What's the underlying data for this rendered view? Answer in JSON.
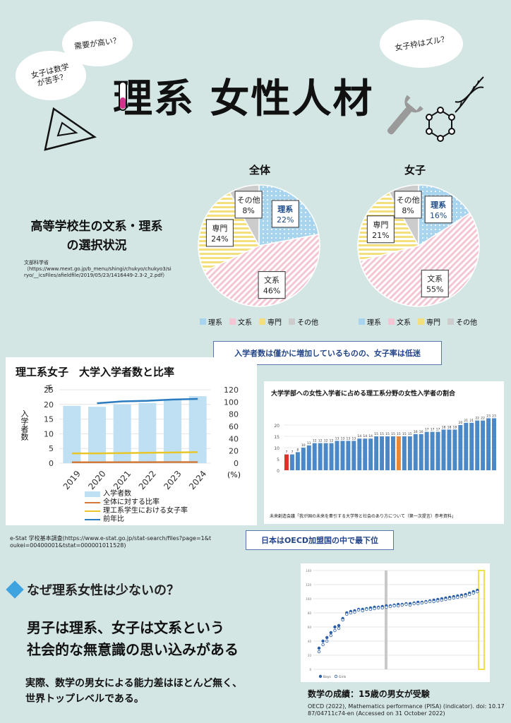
{
  "bubbles": {
    "b1": "需要が高い？",
    "b2": "女子は数学\nが苦手？",
    "b3": "女子枠はズル？"
  },
  "title": "理系 女性人材",
  "pie_section": {
    "heading": "高等学校生の文系・理系\nの選択状況",
    "source": "文部科学省\n（https://www.mext.go.jp/b_menu/shingi/chukyo/chukyo3/siryo/__icsFiles/afieldfile/2019/05/23/1416449-2.3-2_2.pdf）",
    "legend": [
      "理系",
      "文系",
      "専門",
      "その他"
    ]
  },
  "callout_top": "入学者数は僅かに増加しているものの、女子率は低迷",
  "callout_mid": "日本はOECD加盟国の中で最下位",
  "bar_panel": {
    "title": "理工系女子　大学入学者数と比率",
    "y_unit": "千",
    "y_label": "入学者数",
    "y2_unit": "(%)",
    "legend": [
      "入学者数",
      "全体に対する比率",
      "理工系学生における女子率",
      "前年比"
    ],
    "source": "e-Stat 学校基本調査(https://www.e-stat.go.jp/stat-search/files?page=1&toukei=00400001&tstat=000001011528)"
  },
  "oecd_panel": {
    "title": "大学学部への女性入学者に占める理工系分野の女性入学者の割合",
    "source": "未来創造会議「我が国の未来を牽引する大学等と社会のあり方について（第一次提言）参考資料」"
  },
  "pisa_panel": {
    "caption": "数学の成績：15歳の男女が受験",
    "source": "OECD (2022), Mathematics performance (PISA) (indicator). doi: 10.1787/04711c74-en (Accessed on 31 October 2022)",
    "legend": [
      "Boys",
      "Girls"
    ]
  },
  "why": {
    "heading": "なぜ理系女性は少ないの？",
    "main": "男子は理系、女子は文系という\n社会的な無意識の思い込みがある",
    "sub": "実際、数学の男女による能力差はほとんど無く、\n世界トップレベルである。"
  },
  "chart_data": [
    {
      "type": "pie",
      "title": "全体",
      "labels": [
        "理系",
        "文系",
        "専門",
        "その他"
      ],
      "values": [
        22,
        46,
        24,
        8
      ],
      "value_labels": [
        "22%",
        "46%",
        "24%",
        "8%"
      ],
      "colors": [
        "#a8d4ee",
        "#f4c6d4",
        "#f3df7c",
        "#cccccc"
      ]
    },
    {
      "type": "pie",
      "title": "女子",
      "labels": [
        "理系",
        "文系",
        "専門",
        "その他"
      ],
      "values": [
        16,
        55,
        21,
        8
      ],
      "value_labels": [
        "16%",
        "55%",
        "21%",
        "8%"
      ],
      "colors": [
        "#a8d4ee",
        "#f4c6d4",
        "#f3df7c",
        "#cccccc"
      ]
    },
    {
      "type": "bar",
      "title": "理工系女子　大学入学者数と比率",
      "categories": [
        "2019",
        "2020",
        "2021",
        "2022",
        "2023",
        "2024"
      ],
      "ylim": [
        0,
        25
      ],
      "y2lim": [
        0,
        120
      ],
      "yticks": [
        0,
        5,
        10,
        15,
        20,
        25
      ],
      "y2ticks": [
        0,
        20,
        40,
        60,
        80,
        100,
        120
      ],
      "series": [
        {
          "name": "入学者数",
          "kind": "bar",
          "axis": "left",
          "values": [
            19.5,
            19.2,
            20,
            20.5,
            21.5,
            22.8
          ],
          "color": "#bfe0f2"
        },
        {
          "name": "全体に対する比率",
          "kind": "line",
          "axis": "right",
          "values": [
            1.5,
            1.5,
            1.6,
            1.6,
            1.7,
            1.8
          ],
          "color": "#d27a3a"
        },
        {
          "name": "理工系学生における女子率",
          "kind": "line",
          "axis": "right",
          "values": [
            16,
            16,
            16.5,
            17,
            17.5,
            18
          ],
          "color": "#e8c62a"
        },
        {
          "name": "前年比",
          "kind": "line",
          "axis": "right",
          "values": [
            null,
            98,
            101,
            102,
            104,
            105
          ],
          "color": "#2a7bc0"
        }
      ]
    },
    {
      "type": "bar",
      "title": "大学学部への女性入学者に占める理工系分野の女性入学者の割合",
      "ylim": [
        0,
        25
      ],
      "yticks": [
        0,
        5,
        10,
        15,
        20
      ],
      "values": [
        7,
        7,
        8,
        10,
        11,
        12,
        12,
        12,
        12,
        13,
        13,
        13,
        13,
        14,
        14,
        14,
        15,
        15,
        15,
        15,
        15,
        15,
        15,
        16,
        16,
        17,
        17,
        17,
        18,
        18,
        18,
        20,
        21,
        21,
        22,
        22,
        23,
        23
      ],
      "highlight": {
        "0": "#e0302a",
        "20": "#e8883a"
      },
      "color": "#4a88c8"
    },
    {
      "type": "scatter",
      "title": "数学の成績",
      "series": [
        {
          "name": "Boys",
          "values": [
            30,
            40,
            45,
            52,
            60,
            62,
            72,
            80,
            82,
            83,
            85,
            85,
            86,
            87,
            88,
            88,
            89,
            90,
            90,
            91,
            92,
            92,
            93,
            93,
            94,
            95,
            95,
            96,
            97,
            98,
            99,
            100,
            101,
            102,
            103,
            104,
            105,
            106,
            108,
            110,
            112
          ]
        },
        {
          "name": "Girls",
          "values": [
            25,
            35,
            40,
            48,
            55,
            58,
            70,
            78,
            80,
            81,
            84,
            83,
            85,
            85,
            86,
            87,
            87,
            88,
            89,
            90,
            90,
            91,
            92,
            91,
            93,
            93,
            94,
            95,
            96,
            96,
            97,
            98,
            99,
            100,
            101,
            102,
            103,
            104,
            106,
            108,
            110
          ]
        }
      ],
      "ylim": [
        0,
        140
      ]
    }
  ]
}
